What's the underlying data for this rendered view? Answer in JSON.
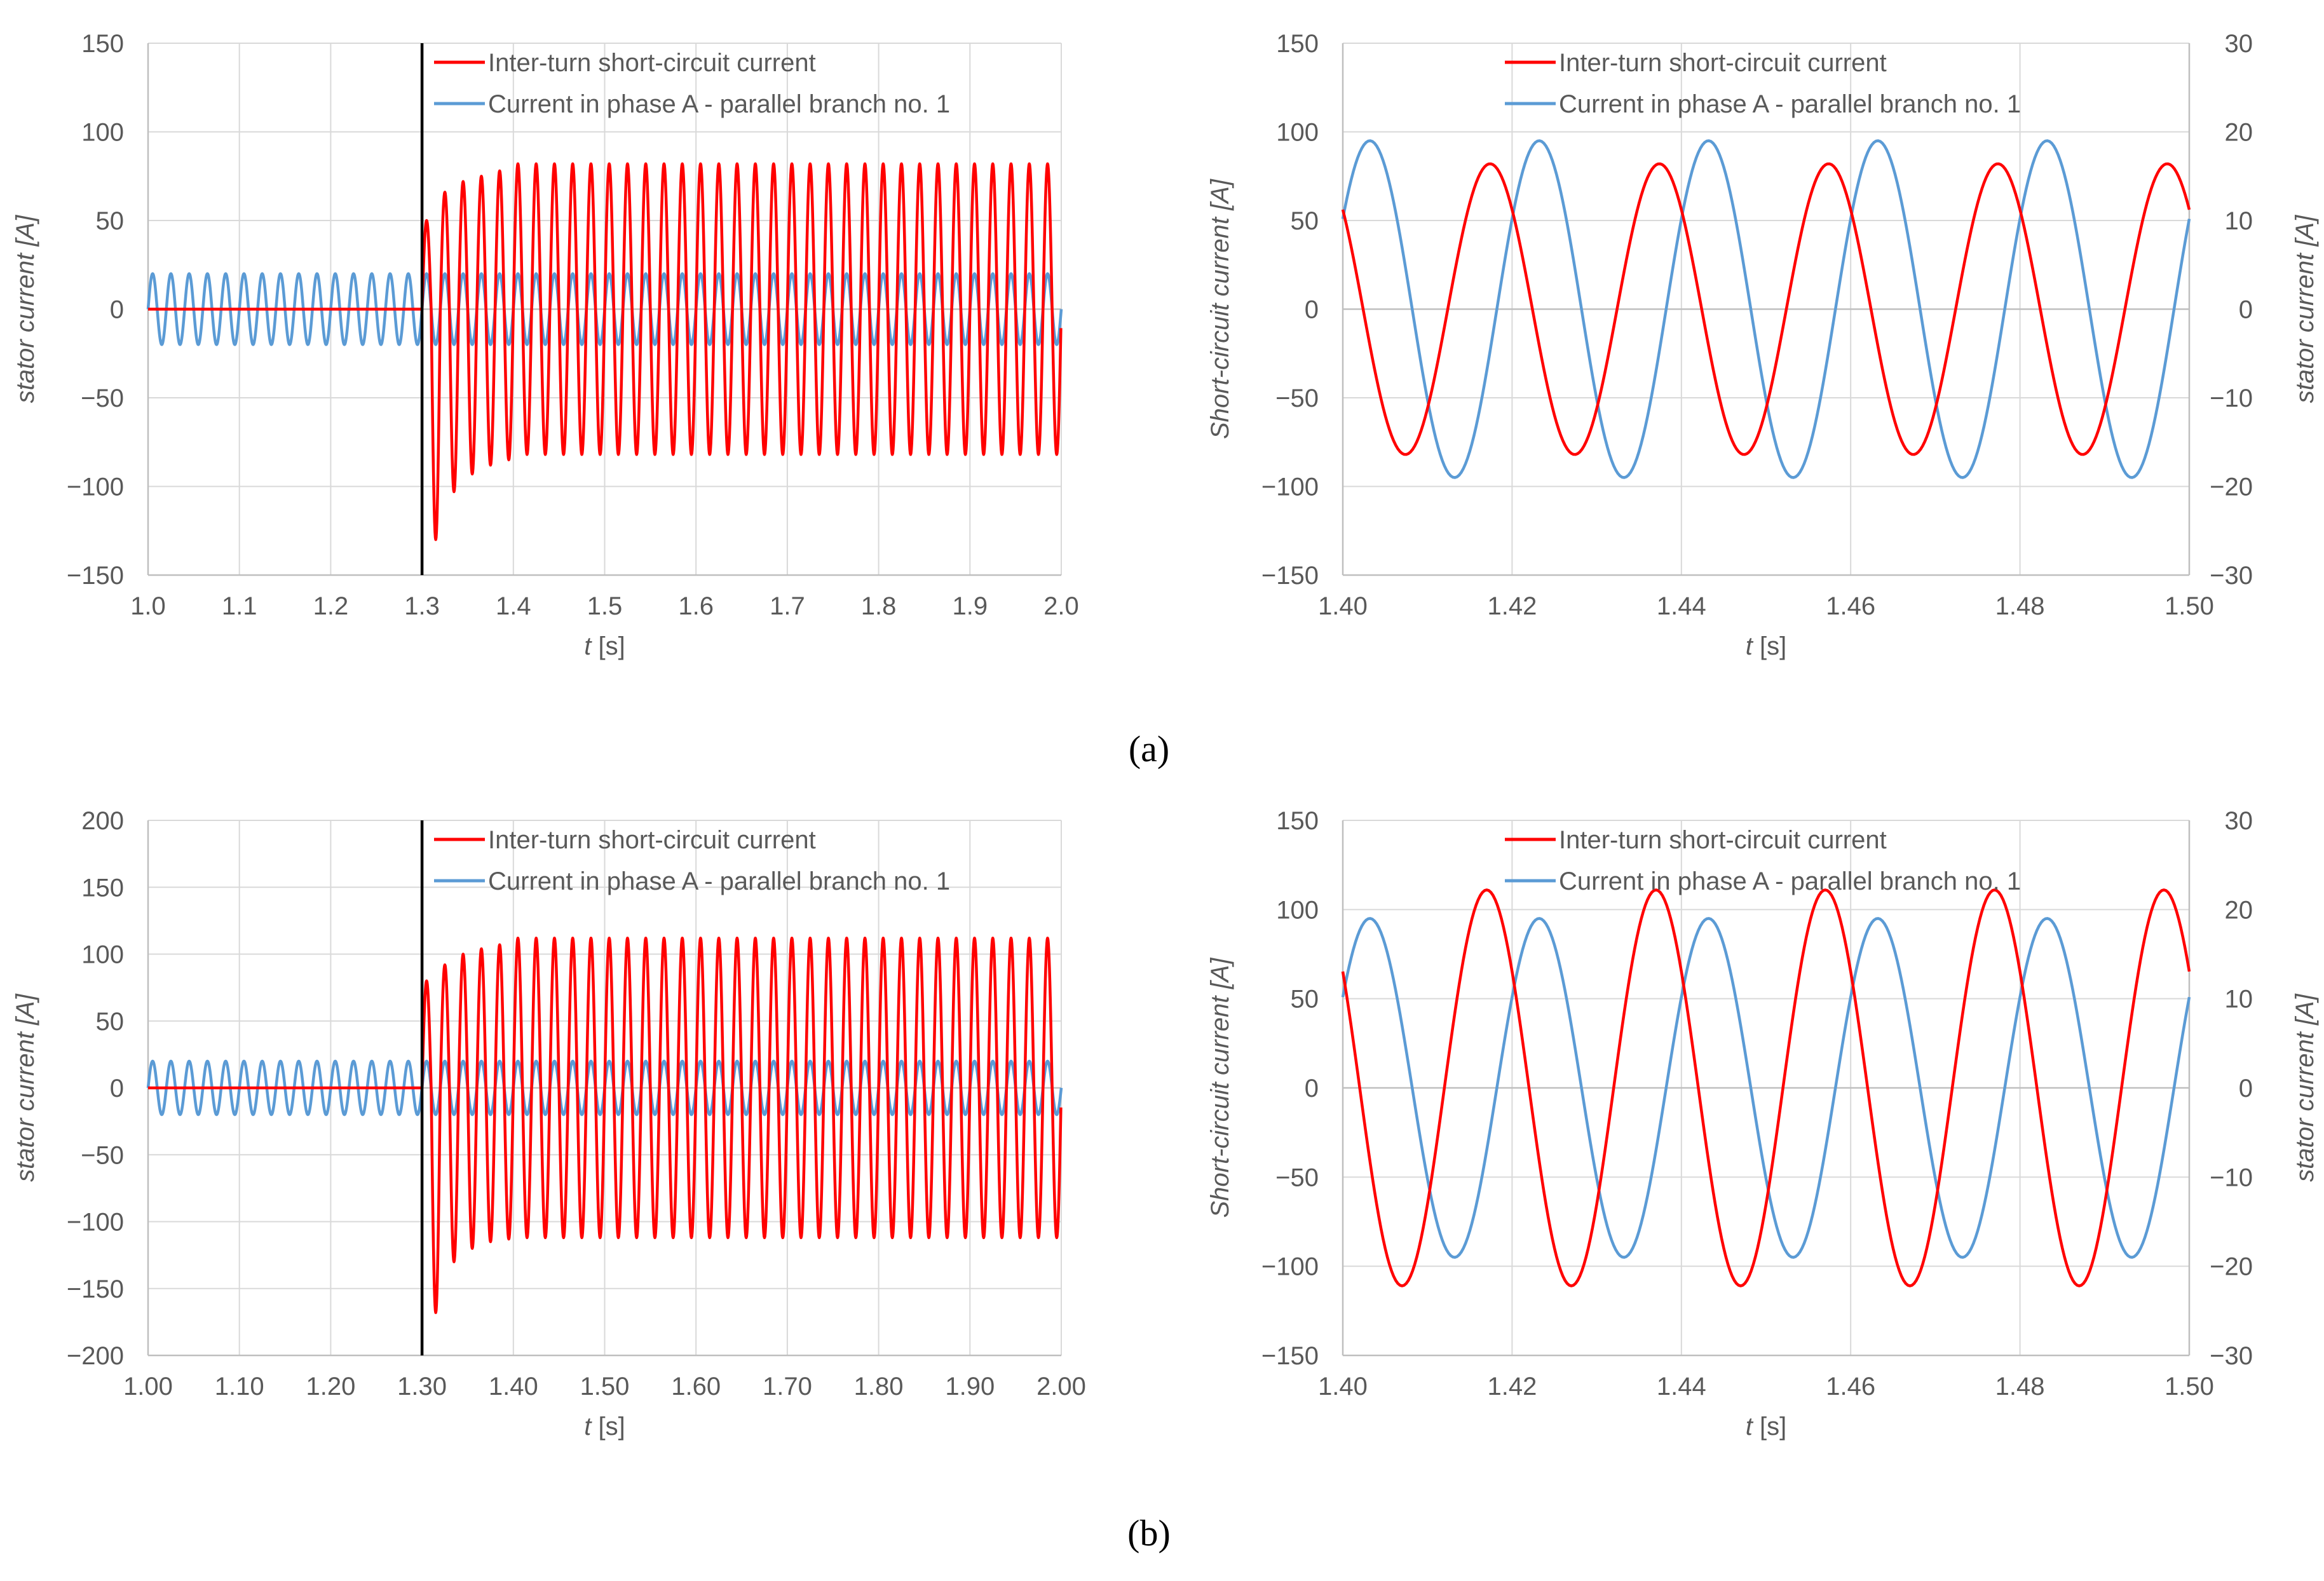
{
  "colors": {
    "red": "#ff0000",
    "blue": "#5b9bd5",
    "grid": "#d9d9d9",
    "axis": "#bfbfbf",
    "text": "#595959",
    "fault_line": "#000000"
  },
  "panel_labels": {
    "a": "(a)",
    "b": "(b)"
  },
  "chart_data": [
    {
      "id": "a-left",
      "type": "line",
      "title": "",
      "xlabel_italic": "t",
      "xlabel_rest": " [s]",
      "ylabel": "stator current [A]",
      "xlim": [
        1.0,
        2.0
      ],
      "ylim": [
        -150,
        150
      ],
      "xticks": [
        "1.0",
        "1.1",
        "1.2",
        "1.3",
        "1.4",
        "1.5",
        "1.6",
        "1.7",
        "1.8",
        "1.9",
        "2.0"
      ],
      "yticks": [
        "150",
        "100",
        "50",
        "0",
        "−50",
        "−100",
        "−150"
      ],
      "fault_time": 1.3,
      "legend": [
        "Inter-turn short-circuit current",
        "Current in phase A - parallel branch no. 1"
      ],
      "series": [
        {
          "name": "Inter-turn short-circuit current",
          "color": "red",
          "frequency_hz": 50,
          "pre_fault": 0,
          "steady_amplitude": 82,
          "first_peaks": [
            50,
            -130,
            66,
            -103,
            72,
            -93,
            75,
            -88,
            78,
            -85
          ]
        },
        {
          "name": "Current in phase A - parallel branch no. 1",
          "color": "blue",
          "frequency_hz": 50,
          "amplitude": 20
        }
      ]
    },
    {
      "id": "a-right",
      "type": "line",
      "xlabel_italic": "t",
      "xlabel_rest": " [s]",
      "ylabel": "Short-circuit current [A]",
      "y2label": "stator current [A]",
      "xlim": [
        1.4,
        1.5
      ],
      "ylim": [
        -150,
        150
      ],
      "y2lim": [
        -30,
        30
      ],
      "xticks": [
        "1.40",
        "1.42",
        "1.44",
        "1.46",
        "1.48",
        "1.50"
      ],
      "yticks": [
        "150",
        "100",
        "50",
        "0",
        "−50",
        "−100",
        "−150"
      ],
      "y2ticks": [
        "30",
        "20",
        "10",
        "0",
        "−10",
        "−20",
        "−30"
      ],
      "legend": [
        "Inter-turn short-circuit current",
        "Current in phase A - parallel branch no. 1"
      ],
      "series": [
        {
          "name": "Inter-turn short-circuit current",
          "axis": "left",
          "color": "red",
          "frequency_hz": 50,
          "amplitude": 82,
          "value_at_start": 52,
          "peaks": [
            {
              "t": 1.4174,
              "v": 81
            },
            {
              "t": 1.4074,
              "v": -82
            }
          ]
        },
        {
          "name": "Current in phase A - parallel branch no. 1",
          "axis": "right",
          "color": "blue",
          "frequency_hz": 50,
          "amplitude": 19,
          "peaks": [
            {
              "t": 1.4032,
              "v": 19.5
            },
            {
              "t": 1.4132,
              "v": -19.3
            }
          ]
        }
      ]
    },
    {
      "id": "b-left",
      "type": "line",
      "xlabel_italic": "t",
      "xlabel_rest": " [s]",
      "ylabel": "stator current [A]",
      "xlim": [
        1.0,
        2.0
      ],
      "ylim": [
        -200,
        200
      ],
      "xticks": [
        "1.00",
        "1.10",
        "1.20",
        "1.30",
        "1.40",
        "1.50",
        "1.60",
        "1.70",
        "1.80",
        "1.90",
        "2.00"
      ],
      "yticks": [
        "200",
        "150",
        "100",
        "50",
        "0",
        "−50",
        "−100",
        "−150",
        "−200"
      ],
      "fault_time": 1.3,
      "legend": [
        "Inter-turn short-circuit current",
        "Current in phase A - parallel branch no. 1"
      ],
      "series": [
        {
          "name": "Inter-turn short-circuit current",
          "color": "red",
          "frequency_hz": 50,
          "pre_fault": 0,
          "steady_amplitude": 112,
          "first_peaks": [
            80,
            -168,
            92,
            -130,
            100,
            -120,
            104,
            -115,
            107,
            -113
          ]
        },
        {
          "name": "Current in phase A - parallel branch no. 1",
          "color": "blue",
          "frequency_hz": 50,
          "amplitude": 20
        }
      ]
    },
    {
      "id": "b-right",
      "type": "line",
      "xlabel_italic": "t",
      "xlabel_rest": " [s]",
      "ylabel": "Short-circuit current [A]",
      "y2label": "stator current [A]",
      "xlim": [
        1.4,
        1.5
      ],
      "ylim": [
        -150,
        150
      ],
      "y2lim": [
        -30,
        30
      ],
      "xticks": [
        "1.40",
        "1.42",
        "1.44",
        "1.46",
        "1.48",
        "1.50"
      ],
      "yticks": [
        "150",
        "100",
        "50",
        "0",
        "−50",
        "−100",
        "−150"
      ],
      "y2ticks": [
        "30",
        "20",
        "10",
        "0",
        "−10",
        "−20",
        "−30"
      ],
      "legend": [
        "Inter-turn short-circuit current",
        "Current in phase A - parallel branch no. 1"
      ],
      "series": [
        {
          "name": "Inter-turn short-circuit current",
          "axis": "left",
          "color": "red",
          "frequency_hz": 50,
          "amplitude": 111,
          "value_at_start": 73,
          "peaks": [
            {
              "t": 1.417,
              "v": 110
            },
            {
              "t": 1.407,
              "v": -111
            }
          ]
        },
        {
          "name": "Current in phase A - parallel branch no. 1",
          "axis": "right",
          "color": "blue",
          "frequency_hz": 50,
          "amplitude": 19,
          "peaks": [
            {
              "t": 1.4032,
              "v": 19
            },
            {
              "t": 1.4132,
              "v": -19
            }
          ]
        }
      ]
    }
  ]
}
